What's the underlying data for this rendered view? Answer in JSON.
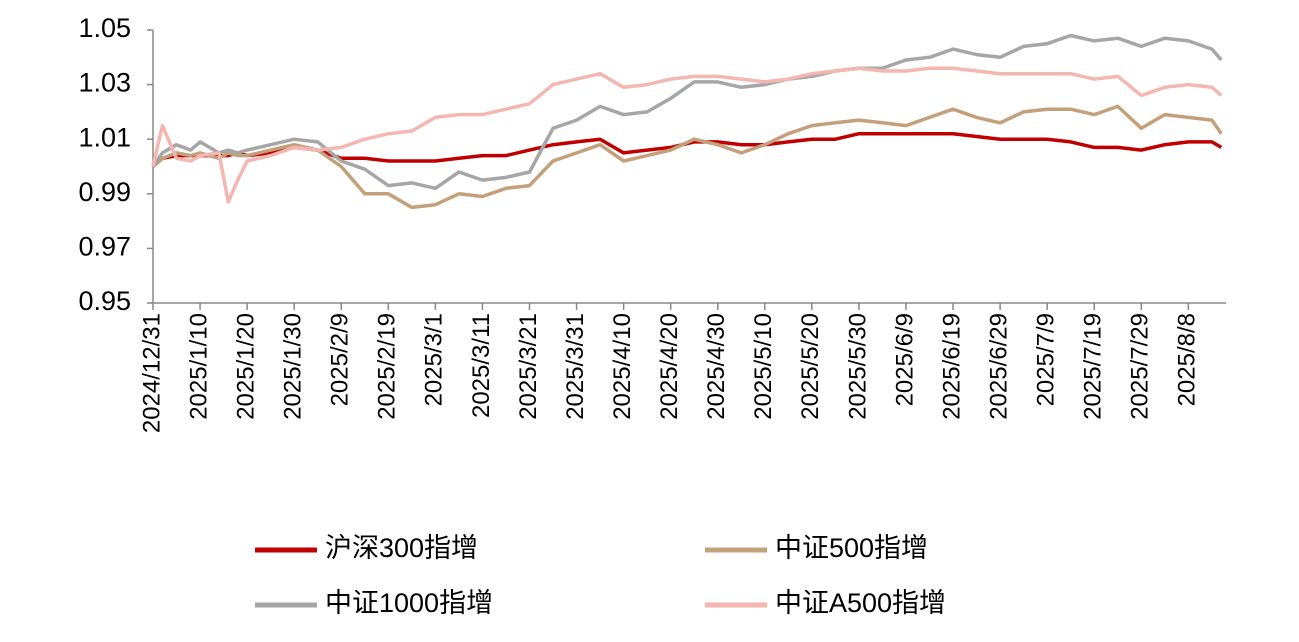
{
  "chart_data": {
    "type": "line",
    "x": [
      "2024/12/31",
      "2025/1/2",
      "2025/1/5",
      "2025/1/8",
      "2025/1/10",
      "2025/1/14",
      "2025/1/16",
      "2025/1/18",
      "2025/1/20",
      "2025/1/25",
      "2025/1/30",
      "2025/2/4",
      "2025/2/9",
      "2025/2/14",
      "2025/2/19",
      "2025/2/24",
      "2025/3/1",
      "2025/3/6",
      "2025/3/11",
      "2025/3/16",
      "2025/3/21",
      "2025/3/26",
      "2025/3/31",
      "2025/4/5",
      "2025/4/10",
      "2025/4/15",
      "2025/4/20",
      "2025/4/25",
      "2025/4/30",
      "2025/5/5",
      "2025/5/10",
      "2025/5/15",
      "2025/5/20",
      "2025/5/25",
      "2025/5/30",
      "2025/6/4",
      "2025/6/9",
      "2025/6/14",
      "2025/6/19",
      "2025/6/24",
      "2025/6/29",
      "2025/7/4",
      "2025/7/9",
      "2025/7/14",
      "2025/7/19",
      "2025/7/24",
      "2025/7/29",
      "2025/8/3",
      "2025/8/8",
      "2025/8/13",
      "2025/8/15"
    ],
    "series": [
      {
        "name": "沪深300指增",
        "color": "#c00000",
        "values": [
          1.0,
          1.003,
          1.004,
          1.004,
          1.004,
          1.004,
          1.004,
          1.005,
          1.004,
          1.005,
          1.007,
          1.006,
          1.003,
          1.003,
          1.002,
          1.002,
          1.002,
          1.003,
          1.004,
          1.004,
          1.006,
          1.008,
          1.009,
          1.01,
          1.005,
          1.006,
          1.007,
          1.009,
          1.009,
          1.008,
          1.008,
          1.009,
          1.01,
          1.01,
          1.012,
          1.012,
          1.012,
          1.012,
          1.012,
          1.011,
          1.01,
          1.01,
          1.01,
          1.009,
          1.007,
          1.007,
          1.006,
          1.008,
          1.009,
          1.009,
          1.007
        ]
      },
      {
        "name": "中证500指增",
        "color": "#c4a07a",
        "values": [
          1.0,
          1.003,
          1.005,
          1.004,
          1.005,
          1.003,
          1.005,
          1.004,
          1.004,
          1.006,
          1.008,
          1.006,
          1.0,
          0.99,
          0.99,
          0.985,
          0.986,
          0.99,
          0.989,
          0.992,
          0.993,
          1.002,
          1.005,
          1.008,
          1.002,
          1.004,
          1.006,
          1.01,
          1.008,
          1.005,
          1.008,
          1.012,
          1.015,
          1.016,
          1.017,
          1.016,
          1.015,
          1.018,
          1.021,
          1.018,
          1.016,
          1.02,
          1.021,
          1.021,
          1.019,
          1.022,
          1.014,
          1.019,
          1.018,
          1.017,
          1.012
        ]
      },
      {
        "name": "中证1000指增",
        "color": "#a6a6a6",
        "values": [
          1.0,
          1.005,
          1.008,
          1.006,
          1.009,
          1.005,
          1.006,
          1.005,
          1.006,
          1.008,
          1.01,
          1.009,
          1.002,
          0.999,
          0.993,
          0.994,
          0.992,
          0.998,
          0.995,
          0.996,
          0.998,
          1.014,
          1.017,
          1.022,
          1.019,
          1.02,
          1.025,
          1.031,
          1.031,
          1.029,
          1.03,
          1.032,
          1.033,
          1.035,
          1.036,
          1.036,
          1.039,
          1.04,
          1.043,
          1.041,
          1.04,
          1.044,
          1.045,
          1.048,
          1.046,
          1.047,
          1.044,
          1.047,
          1.046,
          1.043,
          1.039
        ]
      },
      {
        "name": "中证A500指增",
        "color": "#f4b6b0",
        "values": [
          1.0,
          1.015,
          1.003,
          1.002,
          1.004,
          1.005,
          0.987,
          0.995,
          1.002,
          1.004,
          1.007,
          1.006,
          1.007,
          1.01,
          1.012,
          1.013,
          1.018,
          1.019,
          1.019,
          1.021,
          1.023,
          1.03,
          1.032,
          1.034,
          1.029,
          1.03,
          1.032,
          1.033,
          1.033,
          1.032,
          1.031,
          1.032,
          1.034,
          1.035,
          1.036,
          1.035,
          1.035,
          1.036,
          1.036,
          1.035,
          1.034,
          1.034,
          1.034,
          1.034,
          1.032,
          1.033,
          1.026,
          1.029,
          1.03,
          1.029,
          1.026
        ]
      }
    ],
    "xlim": [
      "2024/12/31",
      "2025/8/16"
    ],
    "xticks": [
      "2024/12/31",
      "2025/1/10",
      "2025/1/20",
      "2025/1/30",
      "2025/2/9",
      "2025/2/19",
      "2025/3/1",
      "2025/3/11",
      "2025/3/21",
      "2025/3/31",
      "2025/4/10",
      "2025/4/20",
      "2025/4/30",
      "2025/5/10",
      "2025/5/20",
      "2025/5/30",
      "2025/6/9",
      "2025/6/19",
      "2025/6/29",
      "2025/7/9",
      "2025/7/19",
      "2025/7/29",
      "2025/8/8"
    ],
    "ylim": [
      0.95,
      1.05
    ],
    "yticks": [
      0.95,
      0.97,
      0.99,
      1.01,
      1.03,
      1.05
    ]
  }
}
